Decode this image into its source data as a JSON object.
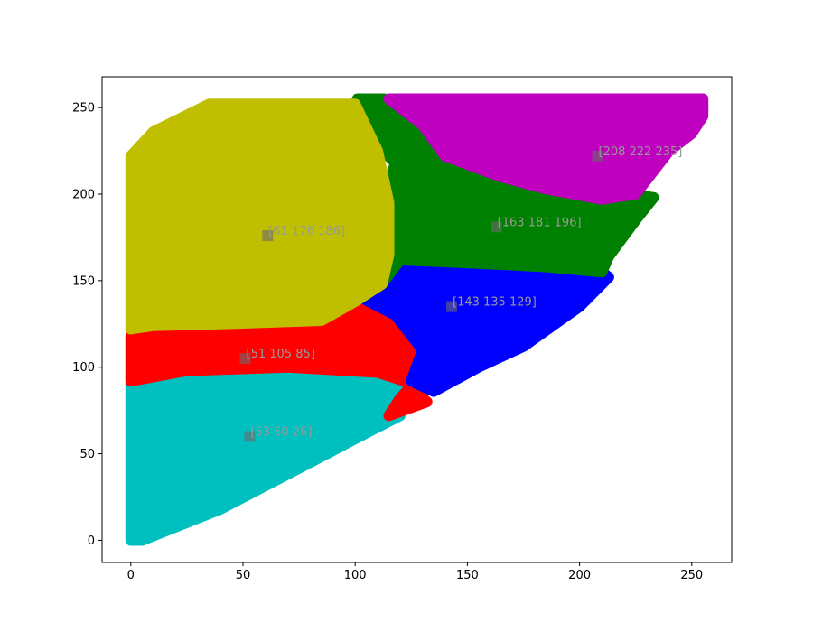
{
  "chart_data": {
    "type": "scatter",
    "title": "",
    "xlabel": "",
    "ylabel": "",
    "xlim": [
      -12.8,
      267.8
    ],
    "ylim": [
      -12.8,
      267.8
    ],
    "xticks": [
      0,
      50,
      100,
      150,
      200,
      250
    ],
    "yticks": [
      0,
      50,
      100,
      150,
      200,
      250
    ],
    "grid": false,
    "legend": "none",
    "clusters": [
      {
        "color": "#00bfbf",
        "center": [
          53,
          60
        ],
        "label": "[53 60 26]",
        "region": [
          [
            0,
            0
          ],
          [
            5,
            0
          ],
          [
            40,
            18
          ],
          [
            80,
            45
          ],
          [
            105,
            62
          ],
          [
            120,
            72
          ],
          [
            118,
            104
          ],
          [
            108,
            106
          ],
          [
            70,
            103
          ],
          [
            30,
            101
          ],
          [
            8,
            98
          ],
          [
            0,
            96
          ]
        ]
      },
      {
        "color": "#ff0000",
        "center": [
          51,
          105
        ],
        "label": "[51 105 85]",
        "region": [
          [
            0,
            92
          ],
          [
            25,
            98
          ],
          [
            70,
            100
          ],
          [
            110,
            97
          ],
          [
            122,
            92
          ],
          [
            132,
            80
          ],
          [
            115,
            72
          ],
          [
            120,
            82
          ],
          [
            130,
            96
          ],
          [
            122,
            102
          ],
          [
            128,
            113
          ],
          [
            115,
            128
          ],
          [
            103,
            137
          ],
          [
            80,
            125
          ],
          [
            40,
            125
          ],
          [
            0,
            118
          ]
        ]
      },
      {
        "color": "#0000ff",
        "center": [
          143,
          135
        ],
        "label": "[143 135 129]",
        "region": [
          [
            125,
            92
          ],
          [
            135,
            86
          ],
          [
            155,
            100
          ],
          [
            175,
            112
          ],
          [
            200,
            135
          ],
          [
            213,
            152
          ],
          [
            205,
            160
          ],
          [
            185,
            160
          ],
          [
            160,
            160
          ],
          [
            130,
            161
          ],
          [
            112,
            156
          ],
          [
            103,
            140
          ],
          [
            118,
            130
          ],
          [
            130,
            110
          ]
        ]
      },
      {
        "color": "#008000",
        "center": [
          163,
          181
        ],
        "label": "[163 181 196]",
        "region": [
          [
            113,
            150
          ],
          [
            113,
            163
          ],
          [
            115,
            176
          ],
          [
            113,
            200
          ],
          [
            118,
            218
          ],
          [
            110,
            228
          ],
          [
            98,
            248
          ],
          [
            101,
            255
          ],
          [
            113,
            255
          ],
          [
            140,
            246
          ],
          [
            170,
            230
          ],
          [
            200,
            218
          ],
          [
            223,
            200
          ],
          [
            233,
            198
          ],
          [
            225,
            185
          ],
          [
            213,
            164
          ],
          [
            210,
            155
          ],
          [
            185,
            158
          ],
          [
            155,
            160
          ],
          [
            120,
            162
          ]
        ]
      },
      {
        "color": "#bf00bf",
        "center": [
          208,
          222
        ],
        "label": "[208 222 235]",
        "region": [
          [
            115,
            255
          ],
          [
            255,
            255
          ],
          [
            255,
            245
          ],
          [
            250,
            235
          ],
          [
            240,
            225
          ],
          [
            225,
            200
          ],
          [
            210,
            197
          ],
          [
            185,
            203
          ],
          [
            165,
            210
          ],
          [
            140,
            222
          ],
          [
            130,
            240
          ]
        ]
      },
      {
        "color": "#bfbf00",
        "center": [
          61,
          176
        ],
        "label": "[61 176 186]",
        "region": [
          [
            0,
            122
          ],
          [
            0,
            222
          ],
          [
            10,
            236
          ],
          [
            35,
            252
          ],
          [
            100,
            252
          ],
          [
            110,
            225
          ],
          [
            115,
            195
          ],
          [
            115,
            165
          ],
          [
            112,
            148
          ],
          [
            100,
            138
          ],
          [
            85,
            127
          ],
          [
            40,
            125
          ],
          [
            10,
            124
          ]
        ]
      }
    ]
  }
}
